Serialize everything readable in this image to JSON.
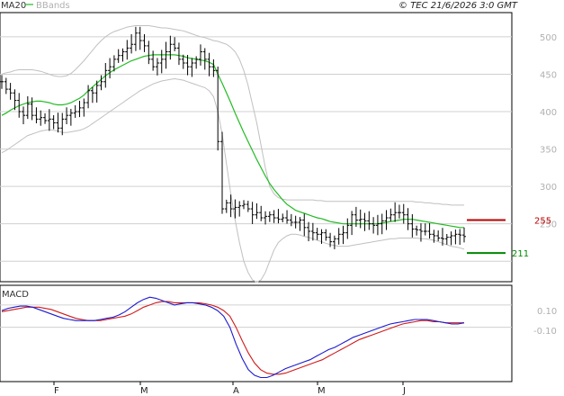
{
  "copyright": "© TEC 21/6/2026 3:0 GMT",
  "colors": {
    "price": "#000000",
    "ma20": "#22bb22",
    "bbands": "#c0c0c0",
    "macd": "#1a1ad0",
    "signal": "#d01a1a",
    "resistance": "#bb0000",
    "support": "#008800",
    "grid": "#d0d0d0"
  },
  "chart_data": [
    {
      "type": "line",
      "panel": "price",
      "legend": [
        "MA20",
        "BBands"
      ],
      "y_ticks": [
        "500",
        "450",
        "400",
        "350",
        "300",
        "250"
      ],
      "ylim": [
        175,
        530
      ],
      "x_ticks": [
        "F",
        "M",
        "A",
        "M",
        "J"
      ],
      "annotations": [
        {
          "label": "255",
          "value": 255,
          "color": "#bb0000"
        },
        {
          "label": "211",
          "value": 211,
          "color": "#008800"
        }
      ],
      "series": [
        {
          "name": "Price",
          "style": "ohlc",
          "values": [
            440,
            430,
            425,
            415,
            400,
            395,
            410,
            395,
            390,
            392,
            388,
            390,
            385,
            378,
            390,
            395,
            398,
            400,
            405,
            412,
            428,
            425,
            435,
            440,
            455,
            460,
            470,
            475,
            480,
            485,
            490,
            505,
            495,
            488,
            470,
            460,
            465,
            470,
            480,
            490,
            485,
            470,
            465,
            460,
            465,
            470,
            480,
            470,
            460,
            455,
            360,
            270,
            278,
            270,
            272,
            274,
            276,
            270,
            262,
            265,
            258,
            260,
            262,
            258,
            256,
            258,
            255,
            252,
            252,
            255,
            245,
            240,
            238,
            236,
            238,
            232,
            226,
            230,
            236,
            238,
            248,
            262,
            255,
            256,
            254,
            250,
            248,
            250,
            254,
            258,
            262,
            265,
            265,
            262,
            250,
            243,
            242,
            240,
            240,
            236,
            234,
            231,
            230,
            232,
            234,
            236,
            235,
            233
          ]
        },
        {
          "name": "MA20",
          "values": [
            395,
            398,
            402,
            405,
            408,
            410,
            412,
            413,
            414,
            414,
            413,
            412,
            410,
            409,
            409,
            410,
            412,
            415,
            418,
            422,
            428,
            433,
            438,
            443,
            448,
            452,
            456,
            459,
            462,
            465,
            468,
            470,
            472,
            474,
            475,
            476,
            476,
            476,
            476,
            476,
            476,
            475,
            474,
            472,
            471,
            470,
            469,
            468,
            466,
            463,
            450,
            438,
            425,
            412,
            398,
            385,
            372,
            360,
            348,
            336,
            325,
            314,
            304,
            296,
            289,
            282,
            276,
            272,
            268,
            266,
            264,
            262,
            260,
            258,
            257,
            255,
            253,
            252,
            251,
            250,
            250,
            250,
            250,
            250,
            250,
            250,
            250,
            250,
            251,
            252,
            253,
            254,
            255,
            256,
            256,
            256,
            255,
            254,
            253,
            252,
            251,
            250,
            249,
            248,
            247,
            246,
            245,
            245
          ]
        },
        {
          "name": "BB Upper",
          "values": [
            450,
            452,
            453,
            455,
            456,
            456,
            456,
            456,
            455,
            454,
            452,
            450,
            448,
            447,
            447,
            448,
            451,
            456,
            462,
            468,
            475,
            482,
            489,
            495,
            500,
            504,
            507,
            509,
            511,
            513,
            514,
            515,
            515,
            515,
            515,
            514,
            513,
            512,
            512,
            511,
            510,
            509,
            508,
            506,
            504,
            502,
            500,
            499,
            497,
            495,
            494,
            492,
            490,
            486,
            480,
            470,
            455,
            435,
            410,
            385,
            355,
            325,
            300,
            290,
            285,
            283,
            282,
            282,
            282,
            282,
            282,
            282,
            282,
            281,
            281,
            280,
            280,
            280,
            280,
            280,
            280,
            280,
            280,
            280,
            280,
            280,
            280,
            280,
            280,
            280,
            280,
            280,
            280,
            280,
            280,
            280,
            279,
            279,
            278,
            278,
            277,
            277,
            276,
            276,
            275,
            275,
            275,
            275
          ]
        },
        {
          "name": "BB Lower",
          "values": [
            345,
            348,
            352,
            356,
            360,
            364,
            368,
            370,
            372,
            374,
            375,
            376,
            375,
            374,
            372,
            372,
            373,
            374,
            375,
            377,
            380,
            384,
            388,
            392,
            396,
            400,
            404,
            408,
            412,
            416,
            420,
            424,
            428,
            431,
            434,
            437,
            439,
            441,
            442,
            443,
            444,
            443,
            442,
            440,
            438,
            436,
            434,
            432,
            428,
            420,
            400,
            370,
            330,
            290,
            255,
            225,
            200,
            185,
            175,
            172,
            175,
            185,
            200,
            215,
            225,
            230,
            234,
            236,
            236,
            235,
            233,
            232,
            230,
            228,
            226,
            224,
            222,
            221,
            220,
            220,
            220,
            221,
            222,
            223,
            224,
            225,
            226,
            227,
            228,
            229,
            230,
            230,
            231,
            231,
            231,
            231,
            231,
            230,
            230,
            229,
            228,
            226,
            224,
            222,
            220,
            219,
            218,
            216
          ]
        }
      ]
    },
    {
      "type": "line",
      "panel": "macd",
      "legend": [
        "MACD"
      ],
      "y_ticks": [
        "0.10",
        "-0.10"
      ],
      "ylim": [
        -0.57,
        0.26
      ],
      "series": [
        {
          "name": "MACD",
          "values": [
            0.05,
            0.07,
            0.08,
            0.09,
            0.09,
            0.08,
            0.06,
            0.04,
            0.02,
            0.0,
            -0.02,
            -0.03,
            -0.04,
            -0.04,
            -0.04,
            -0.04,
            -0.03,
            -0.02,
            -0.01,
            0.01,
            0.04,
            0.08,
            0.12,
            0.15,
            0.17,
            0.16,
            0.14,
            0.12,
            0.1,
            0.11,
            0.12,
            0.12,
            0.11,
            0.1,
            0.08,
            0.05,
            0.0,
            -0.1,
            -0.25,
            -0.38,
            -0.48,
            -0.53,
            -0.55,
            -0.55,
            -0.53,
            -0.5,
            -0.47,
            -0.45,
            -0.43,
            -0.41,
            -0.39,
            -0.36,
            -0.33,
            -0.3,
            -0.28,
            -0.25,
            -0.22,
            -0.19,
            -0.17,
            -0.15,
            -0.13,
            -0.11,
            -0.09,
            -0.07,
            -0.06,
            -0.05,
            -0.04,
            -0.03,
            -0.03,
            -0.03,
            -0.04,
            -0.05,
            -0.06,
            -0.07,
            -0.07,
            -0.06
          ]
        },
        {
          "name": "Signal",
          "values": [
            0.04,
            0.05,
            0.06,
            0.07,
            0.08,
            0.08,
            0.08,
            0.07,
            0.06,
            0.04,
            0.02,
            0.0,
            -0.02,
            -0.03,
            -0.04,
            -0.04,
            -0.04,
            -0.03,
            -0.02,
            -0.01,
            0.0,
            0.02,
            0.05,
            0.08,
            0.1,
            0.12,
            0.13,
            0.13,
            0.12,
            0.12,
            0.12,
            0.12,
            0.12,
            0.11,
            0.1,
            0.08,
            0.05,
            0.0,
            -0.1,
            -0.22,
            -0.33,
            -0.42,
            -0.48,
            -0.51,
            -0.52,
            -0.52,
            -0.51,
            -0.49,
            -0.47,
            -0.45,
            -0.43,
            -0.41,
            -0.39,
            -0.36,
            -0.33,
            -0.3,
            -0.27,
            -0.24,
            -0.21,
            -0.19,
            -0.17,
            -0.15,
            -0.13,
            -0.11,
            -0.09,
            -0.07,
            -0.06,
            -0.05,
            -0.04,
            -0.04,
            -0.05,
            -0.05,
            -0.06,
            -0.06,
            -0.06,
            -0.06
          ]
        }
      ]
    }
  ]
}
